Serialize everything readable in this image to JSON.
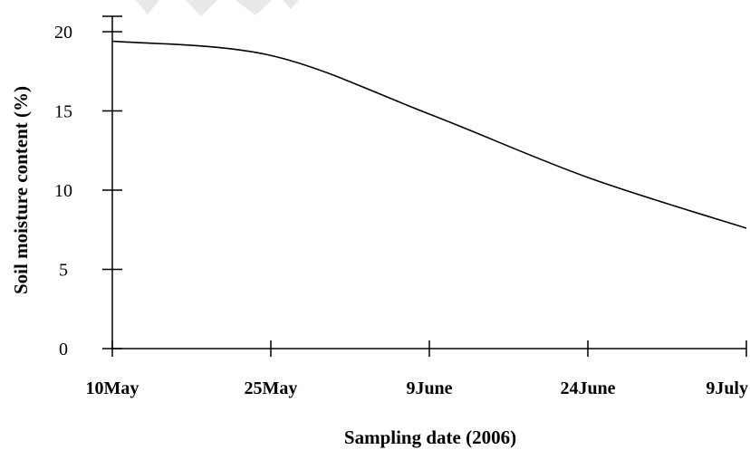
{
  "chart_data": {
    "type": "line",
    "xlabel": "Sampling date (2006)",
    "ylabel": "Soil moisture content (%)",
    "categories": [
      "10May",
      "25May",
      "9June",
      "24June",
      "9July"
    ],
    "ylim": [
      0,
      20
    ],
    "yticks": [
      0,
      5,
      10,
      15,
      20
    ],
    "grid": false,
    "series": [
      {
        "values": [
          19.4,
          18.5,
          14.8,
          10.8,
          7.6
        ]
      }
    ],
    "colors": {
      "line": "#000000",
      "axis": "#000000"
    }
  }
}
